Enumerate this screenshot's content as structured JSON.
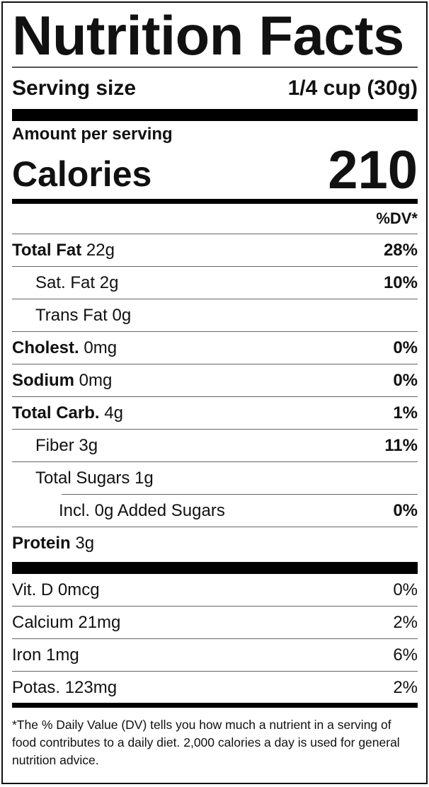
{
  "title": "Nutrition Facts",
  "serving": {
    "label": "Serving size",
    "value": "1/4 cup (30g)"
  },
  "amount_per_serving": "Amount per serving",
  "calories": {
    "label": "Calories",
    "value": "210"
  },
  "dv_header": "%DV*",
  "nutrients": [
    {
      "name": "Total Fat",
      "amount": "22g",
      "dv": "28%",
      "bold": true,
      "indent": 0
    },
    {
      "name": "Sat. Fat",
      "amount": "2g",
      "dv": "10%",
      "bold": false,
      "indent": 1
    },
    {
      "name": "Trans Fat",
      "amount": "0g",
      "dv": "",
      "bold": false,
      "indent": 1
    },
    {
      "name": "Cholest.",
      "amount": "0mg",
      "dv": "0%",
      "bold": true,
      "indent": 0
    },
    {
      "name": "Sodium",
      "amount": "0mg",
      "dv": "0%",
      "bold": true,
      "indent": 0
    },
    {
      "name": "Total Carb.",
      "amount": "4g",
      "dv": "1%",
      "bold": true,
      "indent": 0
    },
    {
      "name": "Fiber",
      "amount": "3g",
      "dv": "11%",
      "bold": false,
      "indent": 1
    },
    {
      "name": "Total Sugars",
      "amount": "1g",
      "dv": "",
      "bold": false,
      "indent": 1
    },
    {
      "name": "Incl. 0g Added Sugars",
      "amount": "",
      "dv": "0%",
      "bold": false,
      "indent": 2
    },
    {
      "name": "Protein",
      "amount": "3g",
      "dv": "",
      "bold": true,
      "indent": 0
    }
  ],
  "vitamins": [
    {
      "name": "Vit. D 0mcg",
      "dv": "0%"
    },
    {
      "name": "Calcium 21mg",
      "dv": "2%"
    },
    {
      "name": "Iron 1mg",
      "dv": "6%"
    },
    {
      "name": "Potas. 123mg",
      "dv": "2%"
    }
  ],
  "footnote": "*The % Daily Value (DV) tells you how much a nutrient in a serving of food contributes to a daily diet. 2,000 calories a day is used for general nutrition advice."
}
